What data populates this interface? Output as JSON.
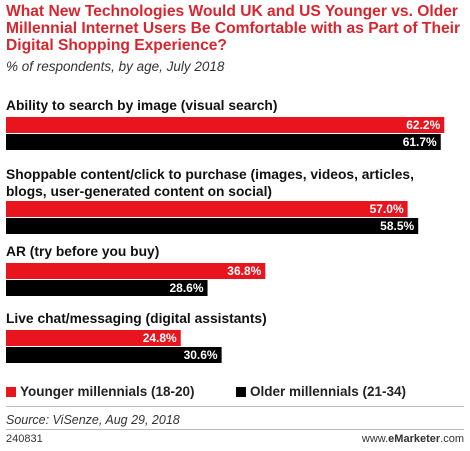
{
  "chart_data": {
    "type": "bar",
    "orientation": "horizontal",
    "title": "What New Technologies Would UK and US Younger vs. Older Millennial Internet Users Be Comfortable with as Part of Their Digital Shopping Experience?",
    "subtitle": "% of respondents, by age, July 2018",
    "categories": [
      "Ability to search by image (visual search)",
      "Shoppable content/click to purchase (images, videos, articles, blogs, user-generated content on social)",
      "AR (try before you buy)",
      "Live chat/messaging (digital assistants)"
    ],
    "series": [
      {
        "name": "Younger millennials (18-20)",
        "color": "#e8141e",
        "values": [
          62.2,
          57.0,
          36.8,
          24.8
        ],
        "labels": [
          "62.2%",
          "57.0%",
          "36.8%",
          "24.8%"
        ]
      },
      {
        "name": "Older millennials (21-34)",
        "color": "#000000",
        "values": [
          61.7,
          58.5,
          28.6,
          30.6
        ],
        "labels": [
          "61.7%",
          "58.5%",
          "28.6%",
          "30.6%"
        ]
      }
    ],
    "xlim": [
      0,
      65
    ],
    "grid": false,
    "legend_position": "bottom",
    "source": "Source: ViSenze, Aug 29, 2018",
    "chart_id": "240831",
    "brand": {
      "prefix": "www.",
      "bold": "eMarketer",
      "suffix": ".com"
    }
  }
}
